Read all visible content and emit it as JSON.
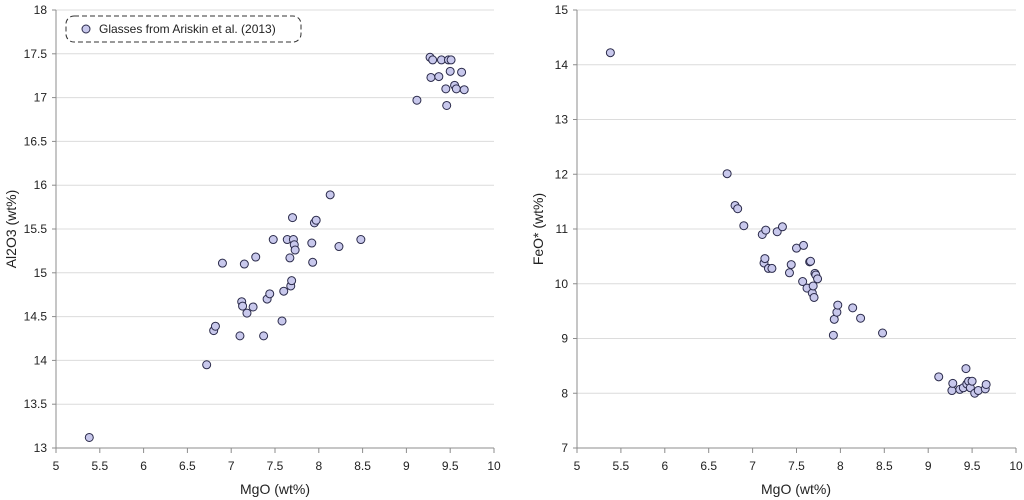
{
  "chart_data": [
    {
      "type": "scatter",
      "title": "",
      "xlabel": "MgO (wt%)",
      "ylabel": "Al2O3 (wt%)",
      "xlim": [
        5,
        10
      ],
      "ylim": [
        13,
        18
      ],
      "xticks": [
        "5",
        "5.5",
        "6",
        "6.5",
        "7",
        "7.5",
        "8",
        "8.5",
        "9",
        "9.5",
        "10"
      ],
      "yticks": [
        "13",
        "13.5",
        "14",
        "14.5",
        "15",
        "15.5",
        "16",
        "16.5",
        "17",
        "17.5",
        "18"
      ],
      "grid": "horizontal",
      "legend": {
        "entry": "Glasses from Ariskin et al. (2013)",
        "placement": "top-left"
      },
      "marker_fill": "#c8c8ec",
      "marker_stroke": "#2a2a4a",
      "series": [
        {
          "name": "Glasses from Ariskin et al. (2013)",
          "x": [
            5.38,
            6.72,
            6.8,
            6.82,
            6.9,
            7.1,
            7.12,
            7.13,
            7.15,
            7.18,
            7.25,
            7.28,
            7.37,
            7.41,
            7.44,
            7.48,
            7.58,
            7.6,
            7.64,
            7.67,
            7.68,
            7.69,
            7.7,
            7.71,
            7.72,
            7.73,
            7.92,
            7.93,
            7.95,
            7.97,
            8.13,
            8.23,
            8.48,
            9.12,
            9.27,
            9.28,
            9.3,
            9.37,
            9.4,
            9.45,
            9.46,
            9.48,
            9.5,
            9.51,
            9.55,
            9.57,
            9.63,
            9.66
          ],
          "y": [
            13.12,
            13.95,
            14.34,
            14.39,
            15.11,
            14.28,
            14.67,
            14.62,
            15.1,
            14.54,
            14.61,
            15.18,
            14.28,
            14.7,
            14.76,
            15.38,
            14.45,
            14.79,
            15.38,
            15.17,
            14.85,
            14.91,
            15.63,
            15.38,
            15.32,
            15.26,
            15.34,
            15.12,
            15.57,
            15.6,
            15.89,
            15.3,
            15.38,
            16.97,
            17.46,
            17.23,
            17.43,
            17.24,
            17.43,
            17.1,
            16.91,
            17.43,
            17.3,
            17.43,
            17.14,
            17.1,
            17.29,
            17.09
          ]
        }
      ]
    },
    {
      "type": "scatter",
      "title": "",
      "xlabel": "MgO (wt%)",
      "ylabel": "FeO* (wt%)",
      "xlim": [
        5,
        10
      ],
      "ylim": [
        7,
        15
      ],
      "xticks": [
        "5",
        "5.5",
        "6",
        "6.5",
        "7",
        "7.5",
        "8",
        "8.5",
        "9",
        "9.5",
        "10"
      ],
      "yticks": [
        "7",
        "8",
        "9",
        "10",
        "11",
        "12",
        "13",
        "14",
        "15"
      ],
      "grid": "horizontal",
      "marker_fill": "#c8c8ec",
      "marker_stroke": "#2a2a4a",
      "series": [
        {
          "name": "Glasses from Ariskin et al. (2013)",
          "x": [
            5.38,
            6.71,
            6.8,
            6.83,
            6.9,
            7.11,
            7.13,
            7.14,
            7.15,
            7.18,
            7.22,
            7.28,
            7.34,
            7.42,
            7.44,
            7.5,
            7.57,
            7.58,
            7.62,
            7.65,
            7.66,
            7.68,
            7.69,
            7.7,
            7.71,
            7.72,
            7.74,
            7.92,
            7.93,
            7.96,
            7.97,
            8.14,
            8.23,
            8.48,
            9.12,
            9.27,
            9.28,
            9.36,
            9.4,
            9.43,
            9.44,
            9.46,
            9.48,
            9.5,
            9.53,
            9.57,
            9.65,
            9.66
          ],
          "y": [
            14.22,
            12.01,
            11.43,
            11.37,
            11.06,
            10.9,
            10.38,
            10.46,
            10.98,
            10.28,
            10.28,
            10.95,
            11.04,
            10.2,
            10.35,
            10.65,
            10.04,
            10.7,
            9.92,
            10.4,
            10.41,
            9.83,
            9.96,
            9.75,
            10.19,
            10.16,
            10.09,
            9.06,
            9.35,
            9.48,
            9.61,
            9.56,
            9.37,
            9.1,
            8.3,
            8.05,
            8.18,
            8.07,
            8.1,
            8.45,
            8.17,
            8.22,
            8.1,
            8.22,
            8.0,
            8.05,
            8.08,
            8.16
          ]
        }
      ]
    }
  ]
}
